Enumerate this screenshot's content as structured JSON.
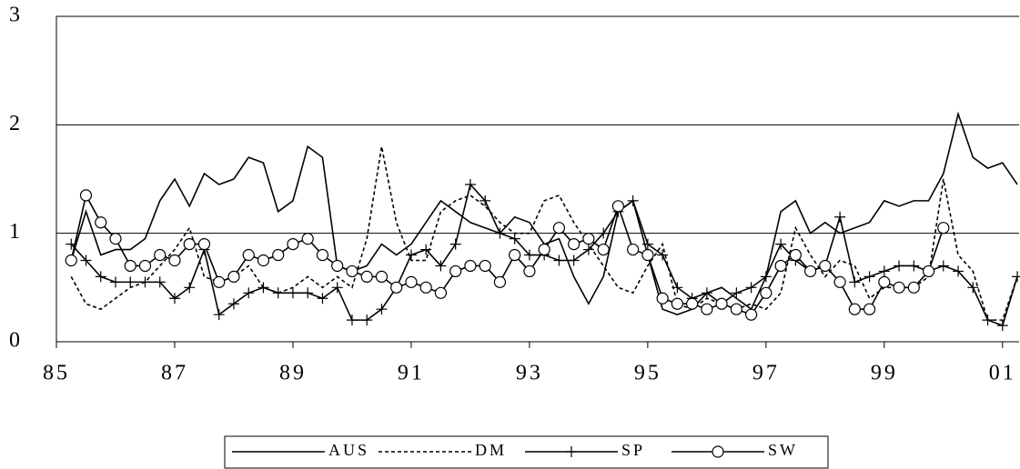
{
  "chart_data": {
    "type": "line",
    "x": [
      1985.25,
      1985.5,
      1985.75,
      1986,
      1986.25,
      1986.5,
      1986.75,
      1987,
      1987.25,
      1987.5,
      1987.75,
      1988,
      1988.25,
      1988.5,
      1988.75,
      1989,
      1989.25,
      1989.5,
      1989.75,
      1990,
      1990.25,
      1990.5,
      1990.75,
      1991,
      1991.25,
      1991.5,
      1991.75,
      1992,
      1992.25,
      1992.5,
      1992.75,
      1993,
      1993.25,
      1993.5,
      1993.75,
      1994,
      1994.25,
      1994.5,
      1994.75,
      1995,
      1995.25,
      1995.5,
      1995.75,
      1996,
      1996.25,
      1996.5,
      1996.75,
      1997,
      1997.25,
      1997.5,
      1997.75,
      1998,
      1998.25,
      1998.5,
      1998.75,
      1999,
      1999.25,
      1999.5,
      1999.75,
      2000,
      2000.25,
      2000.5,
      2000.75,
      2001,
      2001.25
    ],
    "series": [
      {
        "name": "AUS",
        "color": "#000000",
        "dash": "solid",
        "marker": "none",
        "values": [
          0.75,
          1.2,
          0.8,
          0.85,
          0.85,
          0.95,
          1.3,
          1.5,
          1.25,
          1.55,
          1.45,
          1.5,
          1.7,
          1.65,
          1.2,
          1.3,
          1.8,
          1.7,
          0.7,
          0.65,
          0.7,
          0.9,
          0.8,
          0.9,
          1.1,
          1.3,
          1.2,
          1.1,
          1.05,
          1.0,
          1.15,
          1.1,
          0.9,
          0.95,
          0.6,
          0.35,
          0.6,
          1.2,
          1.3,
          0.8,
          0.3,
          0.25,
          0.3,
          0.45,
          0.5,
          0.4,
          0.3,
          0.6,
          1.2,
          1.3,
          1.0,
          1.1,
          1.0,
          1.05,
          1.1,
          1.3,
          1.25,
          1.3,
          1.3,
          1.55,
          2.1,
          1.7,
          1.6,
          1.65,
          1.45
        ]
      },
      {
        "name": "DM",
        "color": "#000000",
        "dash": "dotted",
        "marker": "none",
        "values": [
          0.6,
          0.35,
          0.3,
          0.4,
          0.5,
          0.55,
          0.7,
          0.85,
          1.05,
          0.6,
          0.55,
          0.6,
          0.7,
          0.5,
          0.45,
          0.5,
          0.6,
          0.5,
          0.6,
          0.5,
          0.95,
          1.8,
          1.1,
          0.75,
          0.75,
          1.2,
          1.3,
          1.35,
          1.25,
          1.1,
          1.0,
          1.0,
          1.3,
          1.35,
          1.1,
          0.9,
          0.7,
          0.5,
          0.45,
          0.7,
          0.9,
          0.35,
          0.3,
          0.4,
          0.35,
          0.3,
          0.35,
          0.3,
          0.45,
          1.05,
          0.8,
          0.6,
          0.75,
          0.7,
          0.4,
          0.5,
          0.5,
          0.5,
          0.6,
          1.5,
          0.8,
          0.65,
          0.2,
          0.2,
          0.6
        ]
      },
      {
        "name": "SP",
        "color": "#000000",
        "dash": "solid",
        "marker": "plus",
        "values": [
          0.9,
          0.75,
          0.6,
          0.55,
          0.55,
          0.55,
          0.55,
          0.4,
          0.5,
          0.85,
          0.25,
          0.35,
          0.45,
          0.5,
          0.45,
          0.45,
          0.45,
          0.4,
          0.5,
          0.2,
          0.2,
          0.3,
          0.5,
          0.8,
          0.85,
          0.7,
          0.9,
          1.45,
          1.3,
          1.0,
          0.95,
          0.8,
          0.8,
          0.75,
          0.75,
          0.85,
          1.0,
          1.2,
          1.3,
          0.9,
          0.8,
          0.5,
          0.4,
          0.45,
          0.35,
          0.45,
          0.5,
          0.6,
          0.9,
          0.75,
          0.65,
          0.7,
          1.15,
          0.55,
          0.6,
          0.65,
          0.7,
          0.7,
          0.65,
          0.7,
          0.65,
          0.5,
          0.2,
          0.15,
          0.6
        ]
      },
      {
        "name": "SW",
        "color": "#000000",
        "dash": "solid",
        "marker": "circle",
        "values": [
          0.75,
          1.35,
          1.1,
          0.95,
          0.7,
          0.7,
          0.8,
          0.75,
          0.9,
          0.9,
          0.55,
          0.6,
          0.8,
          0.75,
          0.8,
          0.9,
          0.95,
          0.8,
          0.7,
          0.65,
          0.6,
          0.6,
          0.5,
          0.55,
          0.5,
          0.45,
          0.65,
          0.7,
          0.7,
          0.55,
          0.8,
          0.65,
          0.85,
          1.05,
          0.9,
          0.95,
          0.85,
          1.25,
          0.85,
          0.8,
          0.4,
          0.35,
          0.35,
          0.3,
          0.35,
          0.3,
          0.25,
          0.45,
          0.7,
          0.8,
          0.65,
          0.7,
          0.55,
          0.3,
          0.3,
          0.55,
          0.5,
          0.5,
          0.65,
          1.05,
          null,
          null,
          null,
          null,
          null
        ]
      }
    ],
    "xlim": [
      1985,
      2001.28
    ],
    "xticks": [
      {
        "value": 1985,
        "label": "85"
      },
      {
        "value": 1987,
        "label": "87"
      },
      {
        "value": 1989,
        "label": "89"
      },
      {
        "value": 1991,
        "label": "91"
      },
      {
        "value": 1993,
        "label": "93"
      },
      {
        "value": 1995,
        "label": "95"
      },
      {
        "value": 1997,
        "label": "97"
      },
      {
        "value": 1999,
        "label": "99"
      },
      {
        "value": 2001,
        "label": "01"
      }
    ],
    "ylim": [
      0,
      3
    ],
    "yticks": [
      0,
      1,
      2,
      3
    ],
    "grid": true,
    "legend": "bottom"
  }
}
